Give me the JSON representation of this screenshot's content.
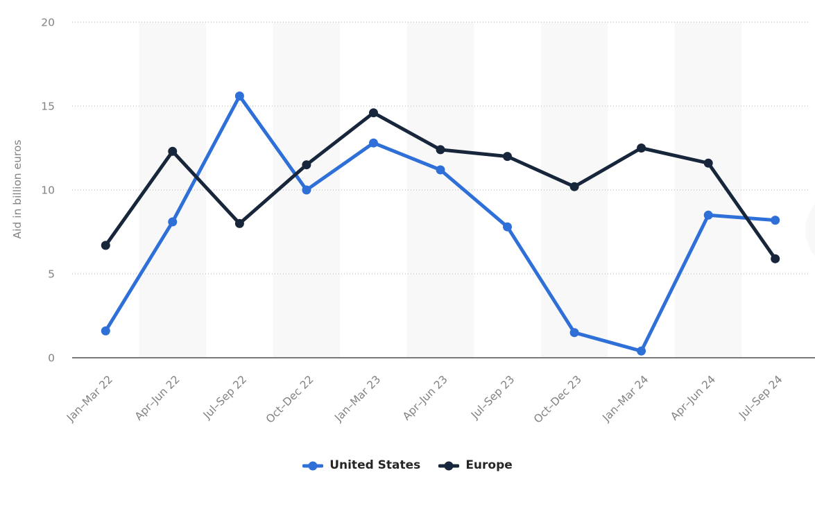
{
  "chart_data": {
    "type": "line",
    "title": "",
    "ylabel": "Aid in billion euros",
    "xlabel": "",
    "categories": [
      "Jan–Mar 22",
      "Apr–Jun 22",
      "Jul–Sep 22",
      "Oct–Dec 22",
      "Jan–Mar 23",
      "Apr–Jun 23",
      "Jul–Sep 23",
      "Oct–Dec 23",
      "Jan–Mar 24",
      "Apr–Jun 24",
      "Jul–Sep 24"
    ],
    "series": [
      {
        "name": "United States",
        "color": "#2e6fd8",
        "values": [
          1.6,
          8.1,
          15.6,
          10.0,
          12.8,
          11.2,
          7.8,
          1.5,
          0.4,
          8.5,
          8.2
        ]
      },
      {
        "name": "Europe",
        "color": "#17263a",
        "values": [
          6.7,
          12.3,
          8.0,
          11.5,
          14.6,
          12.4,
          12.0,
          10.2,
          12.5,
          11.6,
          5.9
        ]
      }
    ],
    "ylim": [
      0,
      20
    ],
    "yticks": [
      0,
      5,
      10,
      15,
      20
    ],
    "grid": "horizontal-dotted",
    "legend_position": "bottom",
    "colors": {
      "plot_band": "#f8f8f8",
      "gridline": "#c9c9c9",
      "axis_line": "#4d4d4d",
      "axis_text": "#828282",
      "legend_text": "#262626"
    }
  }
}
